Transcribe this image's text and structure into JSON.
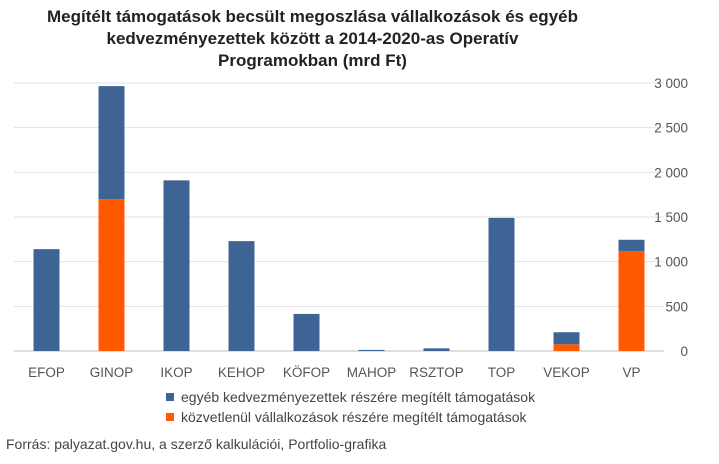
{
  "chart_data": {
    "type": "bar",
    "stacked": true,
    "title_lines": [
      "Megítélt támogatások becsült megoszlása vállalkozások és egyéb",
      "kedvezményezettek között a 2014-2020-as Operatív",
      "Programokban (mrd Ft)"
    ],
    "categories": [
      "EFOP",
      "GINOP",
      "IKOP",
      "KEHOP",
      "KÖFOP",
      "MAHOP",
      "RSZTOP",
      "TOP",
      "VEKOP",
      "VP"
    ],
    "series": [
      {
        "name": "közvetlenül vállalkozások részére megítélt támogatások",
        "color": "#ff5a00",
        "values": [
          0,
          1700,
          0,
          0,
          0,
          0,
          0,
          0,
          75,
          1120
        ]
      },
      {
        "name": "egyéb kedvezményezettek részére megítélt támogatások",
        "color": "#3d6494",
        "values": [
          1140,
          1265,
          1910,
          1230,
          415,
          12,
          30,
          1490,
          135,
          125
        ]
      }
    ],
    "legend_order": [
      1,
      0
    ],
    "y_ticks": [
      "0",
      "500",
      "1 000",
      "1 500",
      "2 000",
      "2 500",
      "3 000"
    ],
    "ylim": [
      0,
      3000
    ],
    "yaxis_position": "right",
    "grid": true,
    "legend_position": "bottom",
    "source": "Forrás: palyazat.gov.hu, a szerző kalkulációi, Portfolio-grafika"
  }
}
